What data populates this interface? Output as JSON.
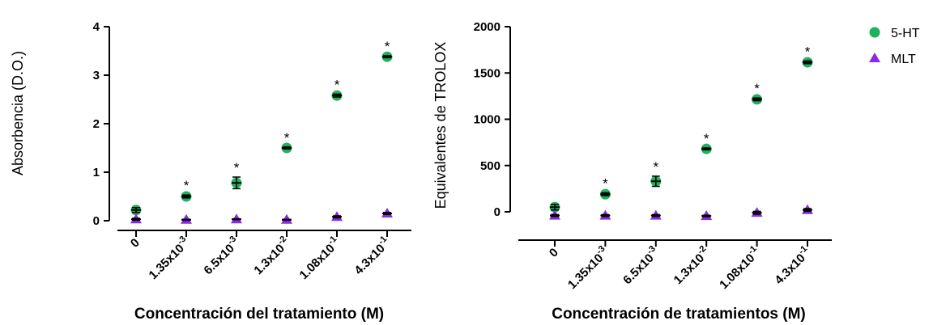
{
  "legend": {
    "entries": [
      {
        "label": "5-HT",
        "color": "#1fb15a",
        "marker": "circle"
      },
      {
        "label": "MLT",
        "color": "#8a2be2",
        "marker": "triangle"
      }
    ]
  },
  "chart_data": [
    {
      "type": "scatter",
      "title": "",
      "xlabel": "Concentración del tratamiento (M)",
      "ylabel": "Absorbencia (D.O.)",
      "categories": [
        {
          "mantissa": "0",
          "exp": ""
        },
        {
          "mantissa": "1.35x10",
          "exp": "-3"
        },
        {
          "mantissa": "6.5x10",
          "exp": "-3"
        },
        {
          "mantissa": "1.3x10",
          "exp": "-2"
        },
        {
          "mantissa": "1.08x10",
          "exp": "-1"
        },
        {
          "mantissa": "4.3x10",
          "exp": "-1"
        }
      ],
      "ylim": [
        0,
        4
      ],
      "yticks": [
        0,
        1,
        2,
        3,
        4
      ],
      "series": [
        {
          "name": "5-HT",
          "values": [
            0.22,
            0.5,
            0.78,
            1.5,
            2.58,
            3.38
          ],
          "errors": [
            0.05,
            0.03,
            0.12,
            0.02,
            0.03,
            0.02
          ]
        },
        {
          "name": "MLT",
          "values": [
            0.03,
            0.02,
            0.03,
            0.02,
            0.08,
            0.15
          ],
          "errors": [
            0.02,
            0.01,
            0.01,
            0.01,
            0.02,
            0.02
          ]
        }
      ],
      "significance": [
        "",
        "*",
        "*",
        "*",
        "*",
        "*"
      ]
    },
    {
      "type": "scatter",
      "title": "",
      "xlabel": "Concentración de tratamientos (M)",
      "ylabel": "Equivalentes de TROLOX",
      "categories": [
        {
          "mantissa": "0",
          "exp": ""
        },
        {
          "mantissa": "1.35x10",
          "exp": "-3"
        },
        {
          "mantissa": "6.5x10",
          "exp": "-3"
        },
        {
          "mantissa": "1.3x10",
          "exp": "-2"
        },
        {
          "mantissa": "1.08x10",
          "exp": "-1"
        },
        {
          "mantissa": "4.3x10",
          "exp": "-1"
        }
      ],
      "ylim": [
        -250,
        2000
      ],
      "yticks": [
        0,
        500,
        1000,
        1500,
        2000
      ],
      "series": [
        {
          "name": "5-HT",
          "values": [
            50,
            190,
            330,
            680,
            1215,
            1615
          ],
          "errors": [
            30,
            15,
            55,
            10,
            15,
            15
          ]
        },
        {
          "name": "MLT",
          "values": [
            -40,
            -40,
            -40,
            -45,
            -10,
            20
          ],
          "errors": [
            10,
            10,
            10,
            8,
            15,
            15
          ]
        }
      ],
      "significance": [
        "",
        "*",
        "*",
        "*",
        "*",
        "*"
      ]
    }
  ]
}
